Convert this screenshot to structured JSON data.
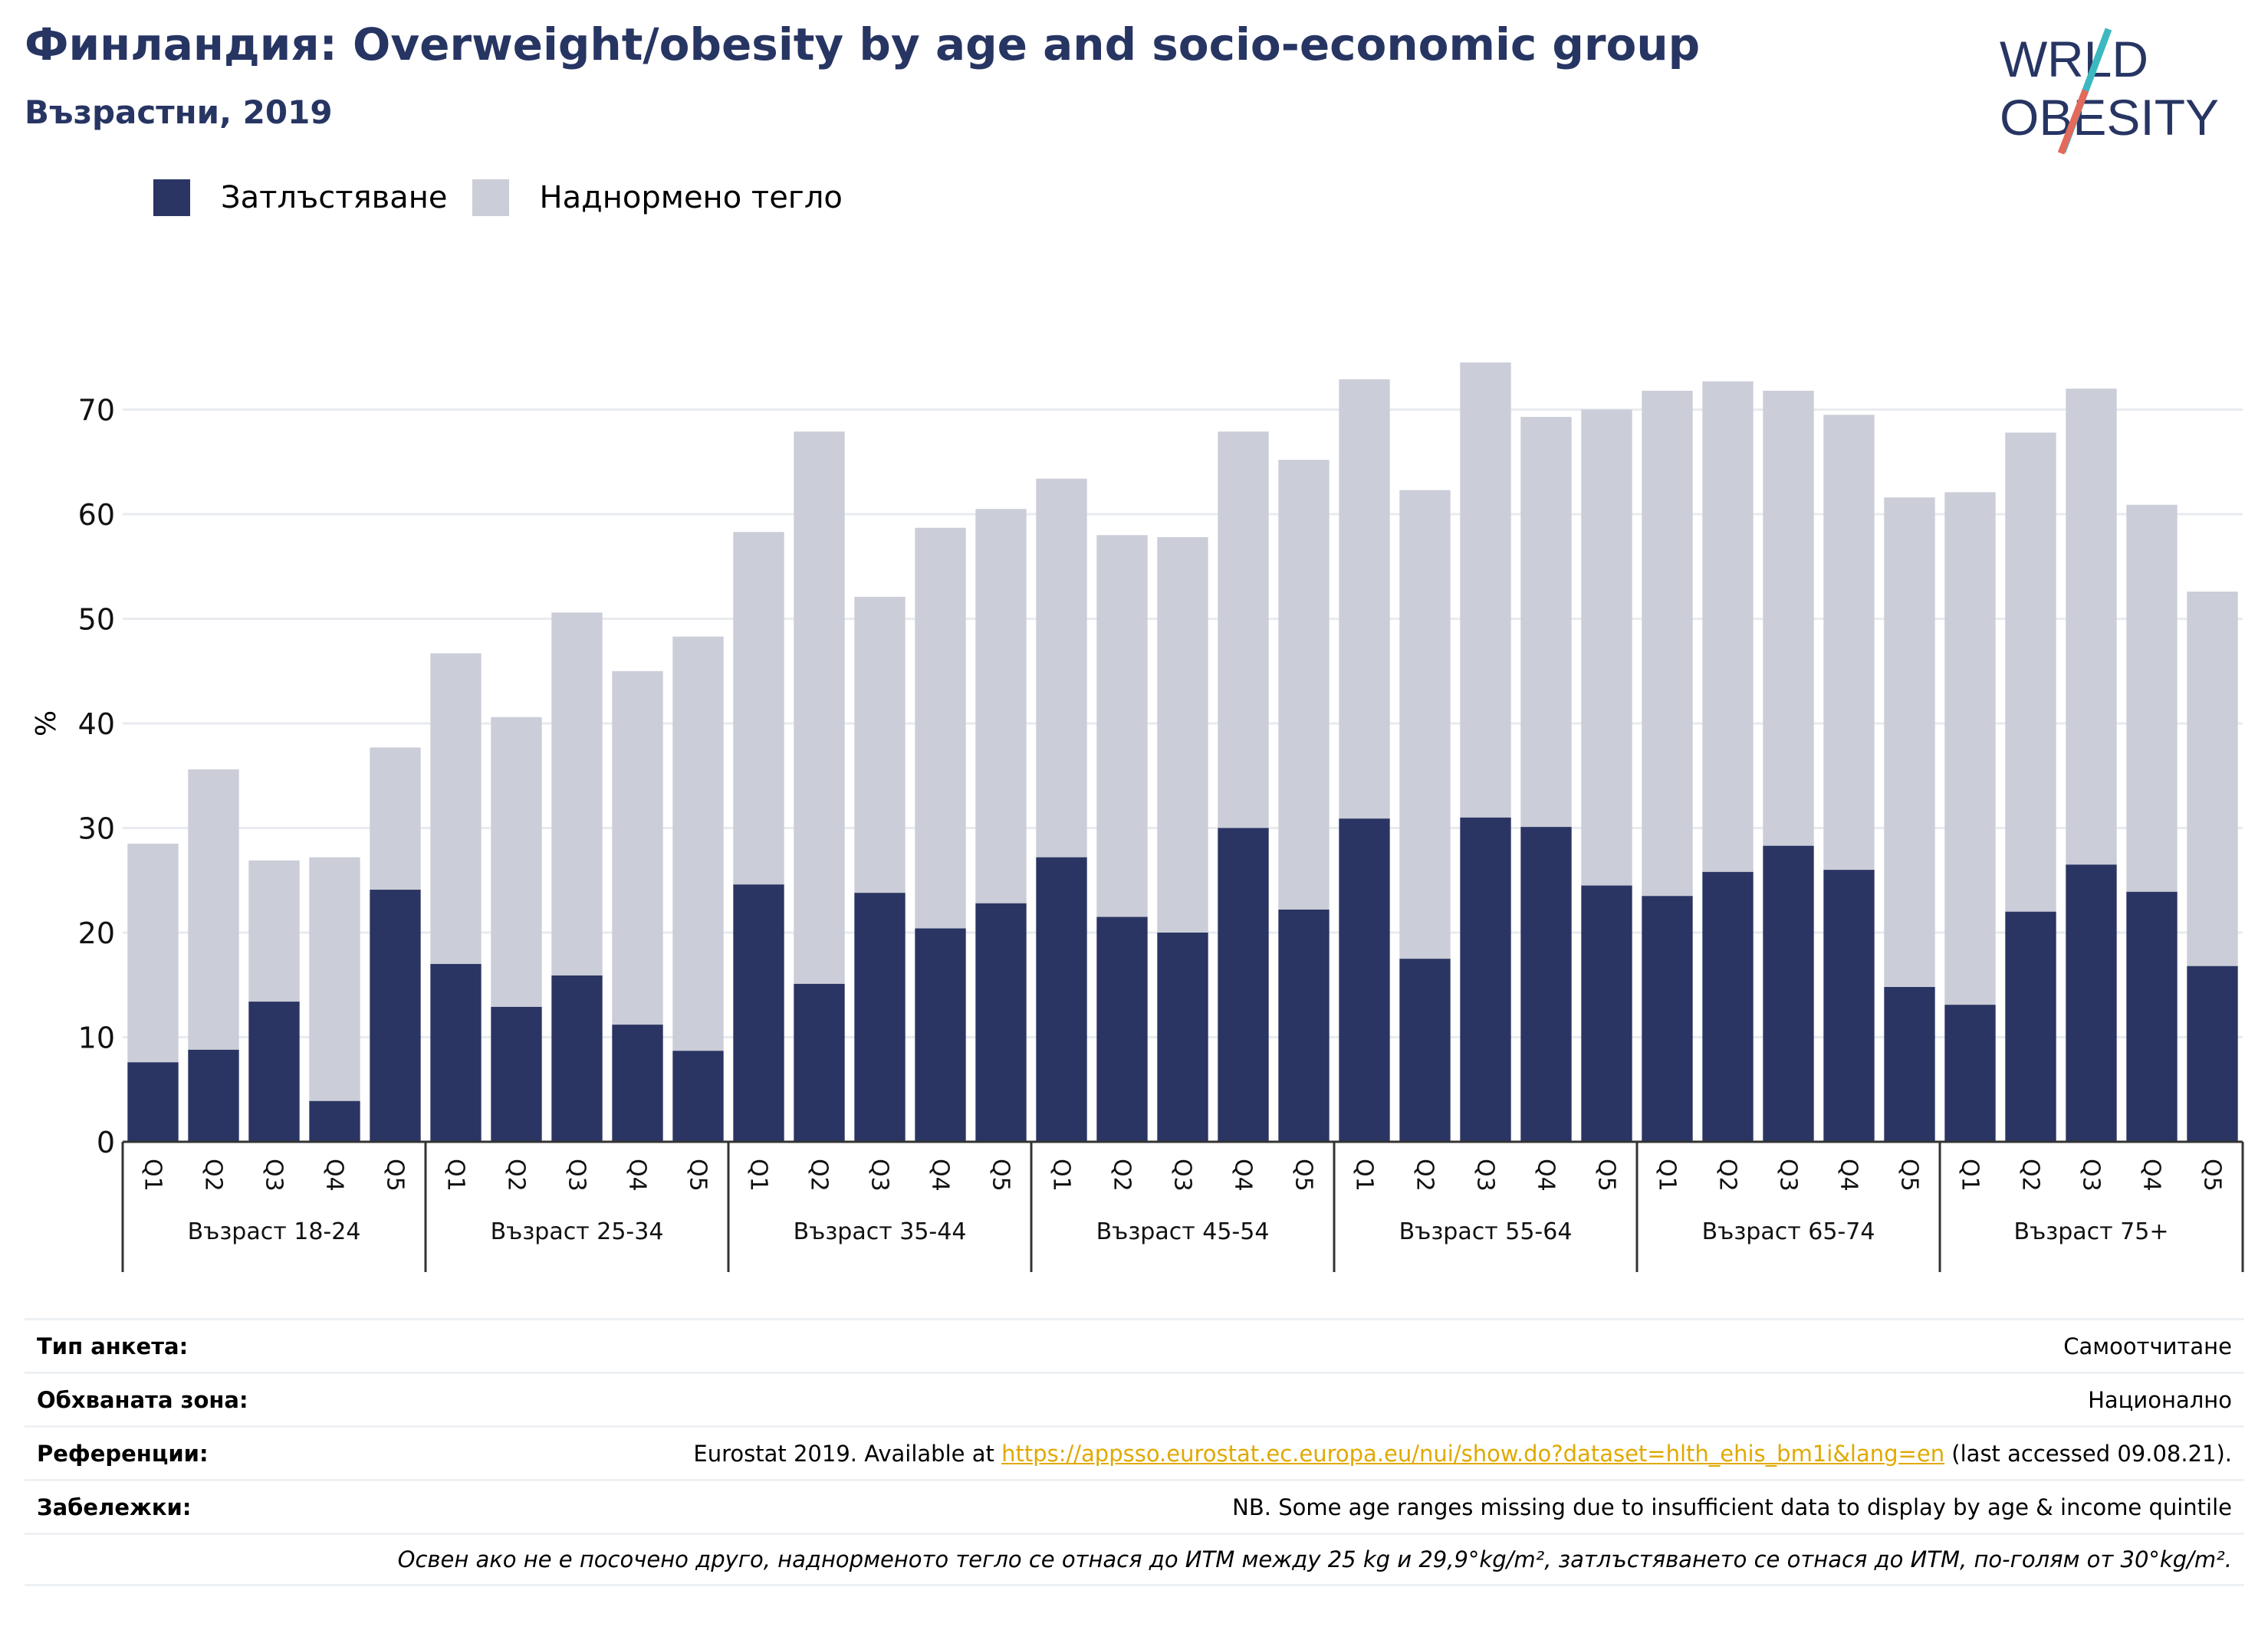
{
  "header": {
    "title": "Финландия: Overweight/obesity by age and socio-economic group",
    "subtitle": "Възрастни, 2019",
    "logo_text": "WORLD OBESITY"
  },
  "colors": {
    "obesity": "#2a3563",
    "overweight": "#cbcdd8",
    "title": "#273563",
    "logo_teal": "#3cb8c0",
    "logo_coral": "#e36a5a"
  },
  "chart_data": {
    "type": "bar",
    "stacked": true,
    "ylabel": "%",
    "ylim": [
      0,
      78
    ],
    "yticks": [
      0,
      10,
      20,
      30,
      40,
      50,
      60,
      70
    ],
    "grid": true,
    "legend_position": "top-left",
    "series": [
      {
        "name": "Затлъстяване",
        "color": "#2a3563"
      },
      {
        "name": "Наднормено тегло",
        "color": "#cbcdd8"
      }
    ],
    "groups": [
      {
        "label": "Възраст 18-24",
        "quintiles": [
          "Q1",
          "Q2",
          "Q3",
          "Q4",
          "Q5"
        ],
        "total": [
          28.5,
          35.6,
          26.9,
          27.2,
          37.7
        ],
        "obesity": [
          7.6,
          8.8,
          13.4,
          3.9,
          24.1
        ]
      },
      {
        "label": "Възраст 25-34",
        "quintiles": [
          "Q1",
          "Q2",
          "Q3",
          "Q4",
          "Q5"
        ],
        "total": [
          46.7,
          40.6,
          50.6,
          45.0,
          48.3
        ],
        "obesity": [
          17.0,
          12.9,
          15.9,
          11.2,
          8.7
        ]
      },
      {
        "label": "Възраст 35-44",
        "quintiles": [
          "Q1",
          "Q2",
          "Q3",
          "Q4",
          "Q5"
        ],
        "total": [
          58.3,
          67.9,
          52.1,
          58.7,
          60.5
        ],
        "obesity": [
          24.6,
          15.1,
          23.8,
          20.4,
          22.8
        ]
      },
      {
        "label": "Възраст 45-54",
        "quintiles": [
          "Q1",
          "Q2",
          "Q3",
          "Q4",
          "Q5"
        ],
        "total": [
          63.4,
          58.0,
          57.8,
          67.9,
          65.2
        ],
        "obesity": [
          27.2,
          21.5,
          20.0,
          30.0,
          22.2
        ]
      },
      {
        "label": "Възраст 55-64",
        "quintiles": [
          "Q1",
          "Q2",
          "Q3",
          "Q4",
          "Q5"
        ],
        "total": [
          72.9,
          62.3,
          74.5,
          69.3,
          70.0
        ],
        "obesity": [
          30.9,
          17.5,
          31.0,
          30.1,
          24.5
        ]
      },
      {
        "label": "Възраст 65-74",
        "quintiles": [
          "Q1",
          "Q2",
          "Q3",
          "Q4",
          "Q5"
        ],
        "total": [
          71.8,
          72.7,
          71.8,
          69.5,
          61.6
        ],
        "obesity": [
          23.5,
          25.8,
          28.3,
          26.0,
          14.8
        ]
      },
      {
        "label": "Възраст 75+",
        "quintiles": [
          "Q1",
          "Q2",
          "Q3",
          "Q4",
          "Q5"
        ],
        "total": [
          62.1,
          67.8,
          72.0,
          60.9,
          52.6
        ],
        "obesity": [
          13.1,
          22.0,
          26.5,
          23.9,
          16.8
        ]
      }
    ]
  },
  "info": {
    "survey_type_label": "Тип анкета:",
    "survey_type_value": "Самоотчитане",
    "coverage_label": "Обхваната зона:",
    "coverage_value": "Национално",
    "references_label": "Референции:",
    "references_prefix": "Eurostat 2019. Available at",
    "references_link": "https://appsso.eurostat.ec.europa.eu/nui/show.do?dataset=hlth_ehis_bm1i&lang=en",
    "references_suffix": "(last accessed 09.08.21).",
    "notes_label": "Забележки:",
    "notes_value": "NB. Some age ranges missing due to insufficient data to display by age & income quintile",
    "definition_note": "Освен ако не е посочено друго, наднорменото тегло се отнася до ИТМ между 25 kg и 29,9°kg/m², затлъстяването се отнася до ИТМ, по-голям от 30°kg/m²."
  }
}
